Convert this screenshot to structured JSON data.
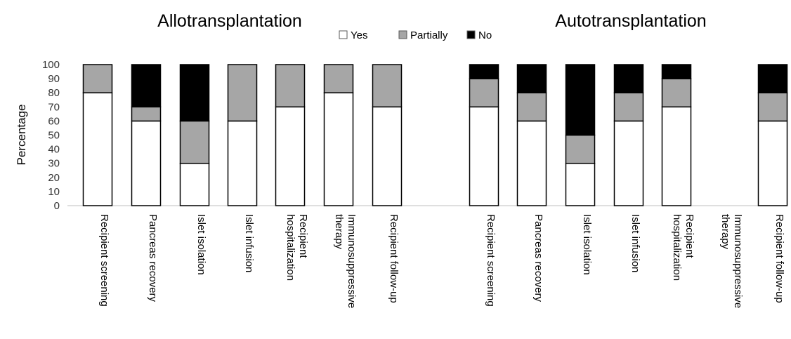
{
  "chart_data": {
    "type": "bar",
    "stacked": true,
    "ylabel": "Percentage",
    "ylim": [
      0,
      100
    ],
    "yticks": [
      0,
      10,
      20,
      30,
      40,
      50,
      60,
      70,
      80,
      90,
      100
    ],
    "grid": false,
    "legend": {
      "placement": "top-center",
      "entries": [
        {
          "name": "Yes",
          "color": "#ffffff"
        },
        {
          "name": "Partially",
          "color": "#a6a6a6"
        },
        {
          "name": "No",
          "color": "#000000"
        }
      ]
    },
    "panels": [
      {
        "title": "Allotransplantation",
        "categories": [
          [
            "Recipient screening"
          ],
          [
            "Pancreas recovery"
          ],
          [
            "Islet isolation"
          ],
          [
            "Islet infusion"
          ],
          [
            "Recipient",
            "hospitalization"
          ],
          [
            "Immunosuppressive",
            "therapy"
          ],
          [
            "Recipient follow-up"
          ]
        ],
        "series": [
          {
            "name": "Yes",
            "values": [
              80,
              60,
              30,
              60,
              70,
              80,
              70
            ]
          },
          {
            "name": "Partially",
            "values": [
              20,
              10,
              30,
              40,
              30,
              20,
              30
            ]
          },
          {
            "name": "No",
            "values": [
              0,
              30,
              40,
              0,
              0,
              0,
              0
            ]
          }
        ]
      },
      {
        "title": "Autotransplantation",
        "categories": [
          [
            "Recipient screening"
          ],
          [
            "Pancreas recovery"
          ],
          [
            "Islet isolation"
          ],
          [
            "Islet infusion"
          ],
          [
            "Recipient",
            "hospitalization"
          ],
          [
            "Immunosuppressive",
            "therapy"
          ],
          [
            "Recipient follow-up"
          ]
        ],
        "series": [
          {
            "name": "Yes",
            "values": [
              70,
              60,
              30,
              60,
              70,
              null,
              60
            ]
          },
          {
            "name": "Partially",
            "values": [
              20,
              20,
              20,
              20,
              20,
              null,
              20
            ]
          },
          {
            "name": "No",
            "values": [
              10,
              20,
              50,
              20,
              10,
              null,
              20
            ]
          }
        ]
      }
    ]
  }
}
